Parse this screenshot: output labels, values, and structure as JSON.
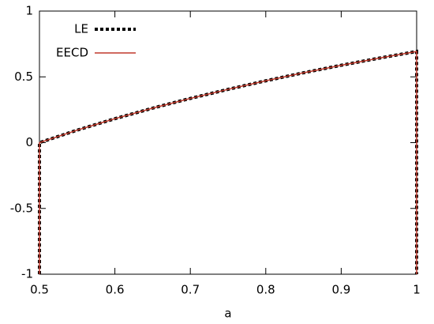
{
  "chart_data": {
    "type": "line",
    "xlabel": "a",
    "x": [
      0.5,
      0.5,
      0.55,
      0.6,
      0.65,
      0.7,
      0.75,
      0.8,
      0.85,
      0.9,
      0.95,
      1,
      1
    ],
    "series": [
      {
        "name": "LE",
        "color": "#000000",
        "values": [
          -1,
          0,
          0.095,
          0.182,
          0.262,
          0.336,
          0.405,
          0.47,
          0.531,
          0.588,
          0.642,
          0.693,
          -1
        ]
      },
      {
        "name": "EECD",
        "color": "#c0392b",
        "values": [
          -1,
          0,
          0.095,
          0.182,
          0.262,
          0.336,
          0.405,
          0.47,
          0.531,
          0.588,
          0.642,
          0.693,
          -1
        ]
      }
    ],
    "xlim": [
      0.5,
      1
    ],
    "xticks": [
      0.5,
      0.6,
      0.7,
      0.8,
      0.9,
      1
    ],
    "ylim": [
      -1,
      1
    ],
    "yticks": [
      -1,
      -0.5,
      0,
      0.5,
      1
    ],
    "grid": false,
    "legend": "top-left"
  }
}
